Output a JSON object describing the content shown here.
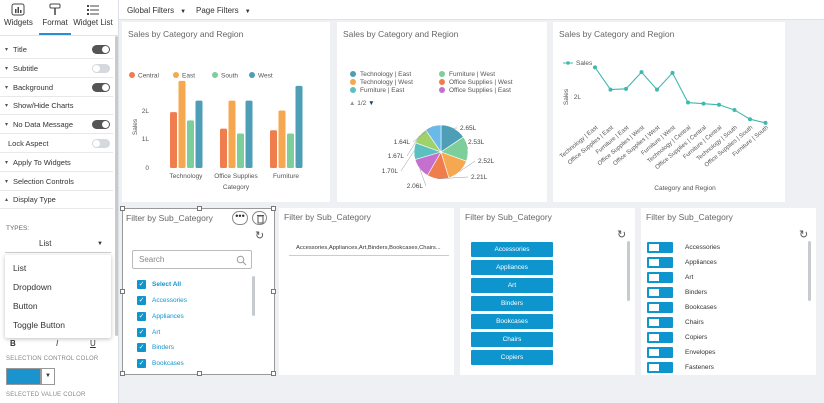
{
  "panel": {
    "tabs": [
      {
        "label": "Widgets",
        "icon": "widgets-icon"
      },
      {
        "label": "Format",
        "icon": "paint-roller-icon"
      },
      {
        "label": "Widget List",
        "icon": "list-icon"
      }
    ],
    "rows": [
      {
        "label": "Title",
        "caret": "▾",
        "toggle": "on"
      },
      {
        "label": "Subtitle",
        "caret": "▾",
        "toggle": "off"
      },
      {
        "label": "Background",
        "caret": "▾",
        "toggle": "on"
      },
      {
        "label": "Show/Hide Charts",
        "caret": "▾",
        "toggle": ""
      },
      {
        "label": "No Data Message",
        "caret": "▾",
        "toggle": "on"
      },
      {
        "label": "Lock Aspect",
        "caret": "",
        "toggle": "off"
      },
      {
        "label": "Apply To Widgets",
        "caret": "▾",
        "toggle": ""
      },
      {
        "label": "Selection Controls",
        "caret": "▾",
        "toggle": ""
      },
      {
        "label": "Display Type",
        "caret": "▴",
        "toggle": ""
      }
    ],
    "types_label": "TYPES:",
    "types_value": "List",
    "types_options": [
      "List",
      "Dropdown",
      "Button",
      "Toggle Button"
    ],
    "format_buttons": [
      "B",
      "I",
      "U"
    ],
    "selection_control_color_label": "SELECTION CONTROL COLOR",
    "selection_control_color": "#1a93cf",
    "selected_value_color_label": "SELECTED VALUE COLOR"
  },
  "topbar": {
    "global_filters": "Global Filters",
    "page_filters": "Page Filters"
  },
  "chart1": {
    "title": "Sales by Category and Region",
    "colors": {
      "Central": "#ef7d4e",
      "East": "#f5a84f",
      "South": "#7ccf9a",
      "West": "#4e9fb5"
    },
    "chart_data": {
      "type": "bar",
      "categories": [
        "Technology",
        "Office Supplies",
        "Furniture"
      ],
      "series": [
        {
          "name": "Central",
          "values": [
            1.7,
            1.2,
            1.15
          ]
        },
        {
          "name": "East",
          "values": [
            2.65,
            2.05,
            1.75
          ]
        },
        {
          "name": "South",
          "values": [
            1.45,
            1.05,
            1.05
          ]
        },
        {
          "name": "West",
          "values": [
            2.05,
            2.05,
            2.5
          ]
        }
      ],
      "xlabel": "Category",
      "ylabel": "Sales",
      "yticks": [
        "0",
        "1L",
        "2L"
      ],
      "ylim": [
        0,
        2.8
      ]
    }
  },
  "chart2": {
    "title": "Sales by Category and Region",
    "legend": [
      {
        "label": "Technology | East",
        "color": "#4e9fb5"
      },
      {
        "label": "Furniture | West",
        "color": "#7ccf9a"
      },
      {
        "label": "Technology | West",
        "color": "#f5a84f"
      },
      {
        "label": "Office Supplies | West",
        "color": "#ef7d4e"
      },
      {
        "label": "Furniture | East",
        "color": "#5cc0c0"
      },
      {
        "label": "Office Supplies | East",
        "color": "#c56fcf"
      }
    ],
    "pager": "1/2",
    "chart_data": {
      "type": "pie",
      "labels": [
        "2.65L",
        "2.53L",
        "2.52L",
        "2.21L",
        "2.06L",
        "1.70L",
        "1.67L",
        "1.64L"
      ],
      "values": [
        2.65,
        2.53,
        2.52,
        2.21,
        2.06,
        1.7,
        1.67,
        1.64
      ],
      "colors": [
        "#4e9fb5",
        "#7ccf9a",
        "#f5a84f",
        "#ef7d4e",
        "#c56fcf",
        "#5cc0c0",
        "#9fd26a",
        "#6bb9e8"
      ]
    }
  },
  "chart3": {
    "title": "Sales by Category and Region",
    "color": "#3fb8b0",
    "chart_data": {
      "type": "line",
      "series": [
        {
          "name": "Sales",
          "values": [
            2.65,
            2.05,
            2.07,
            2.52,
            2.05,
            2.5,
            1.7,
            1.67,
            1.64,
            1.5,
            1.25,
            1.15
          ]
        }
      ],
      "x": [
        "Technology | East",
        "Office Supplies | East",
        "Furniture | East",
        "Office Supplies | West",
        "Office Supplies | West",
        "Furniture | West",
        "Technology | Central",
        "Office Supplies | Central",
        "Furniture | Central",
        "Technology | South",
        "Office Supplies | South",
        "Furniture | South"
      ],
      "xlabel": "Category and Region",
      "ylabel": "Sales",
      "yticks": [
        "2L"
      ],
      "ylim": [
        0.5,
        3.2
      ]
    }
  },
  "filter_list": {
    "title": "Filter by Sub_Category",
    "search_placeholder": "Search",
    "select_all": "Select All",
    "items": [
      "Accessories",
      "Appliances",
      "Art",
      "Binders",
      "Bookcases"
    ]
  },
  "filter_dropdown": {
    "title": "Filter by Sub_Category",
    "value": "Accessories,Appliances,Art,Binders,Bookcases,Chairs..."
  },
  "filter_buttons": {
    "title": "Filter by Sub_Category",
    "items": [
      "Accessories",
      "Appliances",
      "Art",
      "Binders",
      "Bookcases",
      "Chairs",
      "Copiers"
    ]
  },
  "filter_toggles": {
    "title": "Filter by Sub_Category",
    "items": [
      "Accessories",
      "Appliances",
      "Art",
      "Binders",
      "Bookcases",
      "Chairs",
      "Copiers",
      "Envelopes",
      "Fasteners"
    ]
  }
}
